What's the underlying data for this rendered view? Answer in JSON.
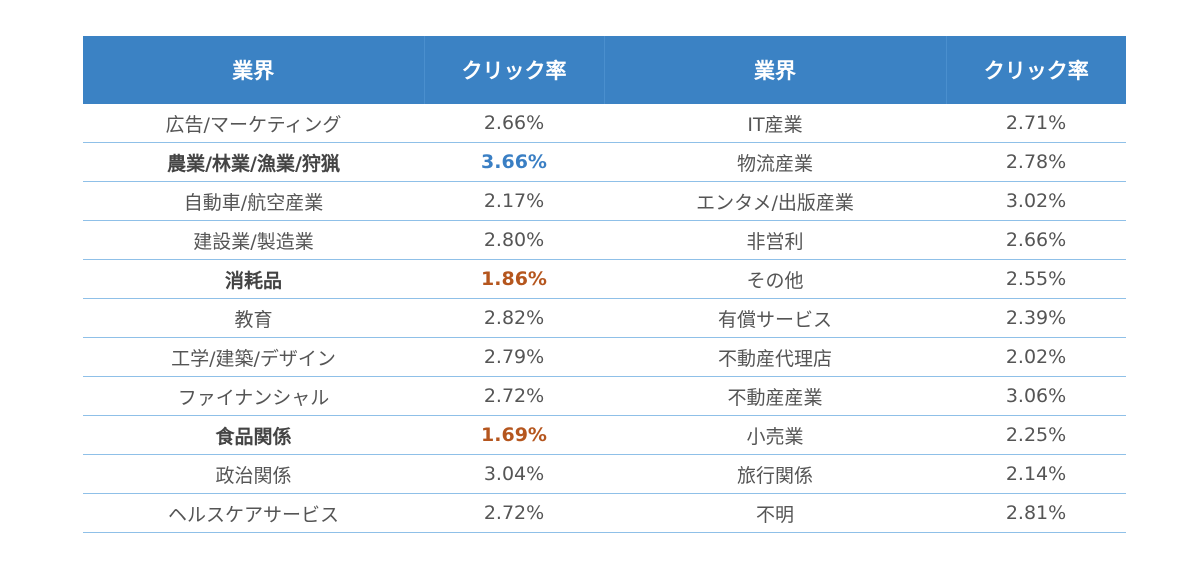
{
  "header": {
    "industry_left": "業界",
    "ctr_left": "クリック率",
    "industry_right": "業界",
    "ctr_right": "クリック率"
  },
  "colors": {
    "header_bg": "#3b82c4",
    "highlight_high": "#3a7fc4",
    "highlight_low": "#b5561e",
    "row_border": "#8fc0e8"
  },
  "rows": [
    {
      "left_industry": "広告/マーケティング",
      "left_ctr": "2.66%",
      "right_industry": "IT産業",
      "right_ctr": "2.71%"
    },
    {
      "left_industry": "農業/林業/漁業/狩猟",
      "left_ctr": "3.66%",
      "right_industry": "物流産業",
      "right_ctr": "2.78%"
    },
    {
      "left_industry": "自動車/航空産業",
      "left_ctr": "2.17%",
      "right_industry": "エンタメ/出版産業",
      "right_ctr": "3.02%"
    },
    {
      "left_industry": "建設業/製造業",
      "left_ctr": "2.80%",
      "right_industry": "非営利",
      "right_ctr": "2.66%"
    },
    {
      "left_industry": "消耗品",
      "left_ctr": "1.86%",
      "right_industry": "その他",
      "right_ctr": "2.55%"
    },
    {
      "left_industry": "教育",
      "left_ctr": "2.82%",
      "right_industry": "有償サービス",
      "right_ctr": "2.39%"
    },
    {
      "left_industry": "工学/建築/デザイン",
      "left_ctr": "2.79%",
      "right_industry": "不動産代理店",
      "right_ctr": "2.02%"
    },
    {
      "left_industry": "ファイナンシャル",
      "left_ctr": "2.72%",
      "right_industry": "不動産産業",
      "right_ctr": "3.06%"
    },
    {
      "left_industry": "食品関係",
      "left_ctr": "1.69%",
      "right_industry": "小売業",
      "right_ctr": "2.25%"
    },
    {
      "left_industry": "政治関係",
      "left_ctr": "3.04%",
      "right_industry": "旅行関係",
      "right_ctr": "2.14%"
    },
    {
      "left_industry": "ヘルスケアサービス",
      "left_ctr": "2.72%",
      "right_industry": "不明",
      "right_ctr": "2.81%"
    }
  ]
}
